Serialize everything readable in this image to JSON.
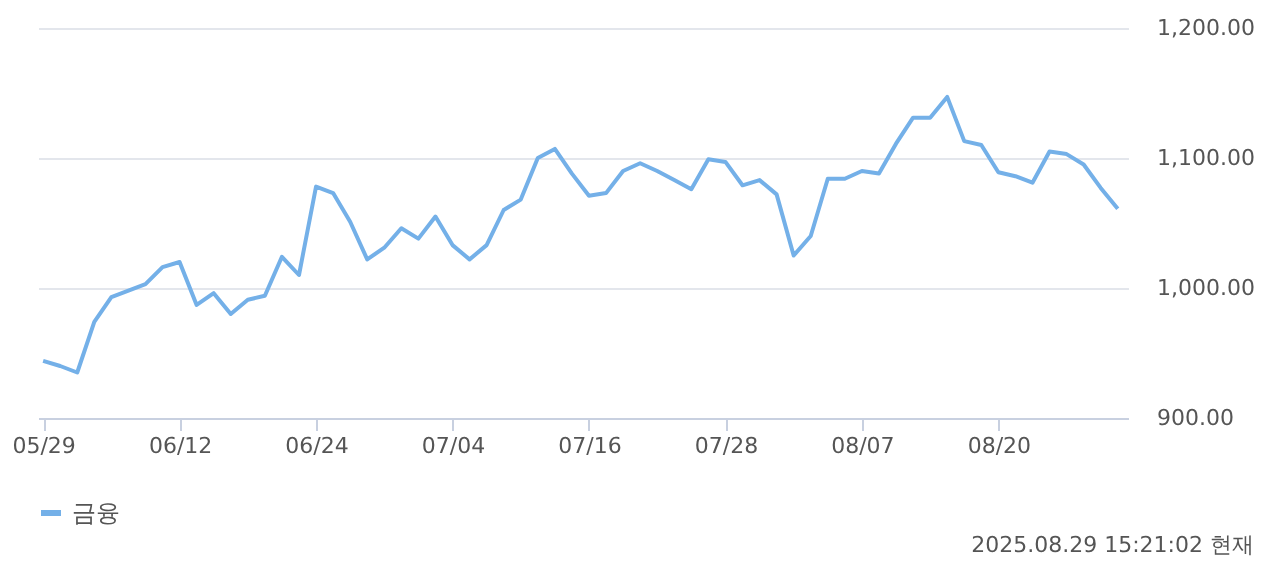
{
  "chart_data": {
    "type": "line",
    "categories": [
      "05/29",
      null,
      null,
      null,
      null,
      null,
      null,
      null,
      "06/12",
      null,
      null,
      null,
      null,
      null,
      null,
      null,
      "06/24",
      null,
      null,
      null,
      null,
      null,
      null,
      null,
      "07/04",
      null,
      null,
      null,
      null,
      null,
      null,
      null,
      "07/16",
      null,
      null,
      null,
      null,
      null,
      null,
      null,
      "07/28",
      null,
      null,
      null,
      null,
      null,
      null,
      null,
      "08/07",
      null,
      null,
      null,
      null,
      null,
      null,
      null,
      "08/20",
      null,
      null,
      null,
      null,
      null,
      null,
      null
    ],
    "series": [
      {
        "name": "금융",
        "color": "#74b0e8",
        "values": [
          944,
          940,
          935,
          974,
          993,
          998,
          1003,
          1016,
          1020,
          987,
          996,
          980,
          991,
          994,
          1024,
          1010,
          1078,
          1073,
          1051,
          1022,
          1031,
          1046,
          1038,
          1055,
          1033,
          1022,
          1033,
          1060,
          1068,
          1100,
          1107,
          1088,
          1071,
          1073,
          1090,
          1096,
          1090,
          1083,
          1076,
          1099,
          1097,
          1079,
          1083,
          1072,
          1025,
          1040,
          1084,
          1084,
          1090,
          1088,
          1111,
          1131,
          1131,
          1147,
          1113,
          1110,
          1089,
          1086,
          1081,
          1105,
          1103,
          1095,
          1077,
          1061
        ]
      }
    ],
    "ylim": [
      900,
      1200
    ],
    "yticks": [
      {
        "value": 900,
        "label": "900.00"
      },
      {
        "value": 1000,
        "label": "1,000.00"
      },
      {
        "value": 1100,
        "label": "1,100.00"
      },
      {
        "value": 1200,
        "label": "1,200.00"
      }
    ],
    "grid": "y",
    "legend": "bottom",
    "marker": "none",
    "line_style": "solid",
    "annotations": [
      "2025.08.29 15:21:02 현재"
    ]
  }
}
